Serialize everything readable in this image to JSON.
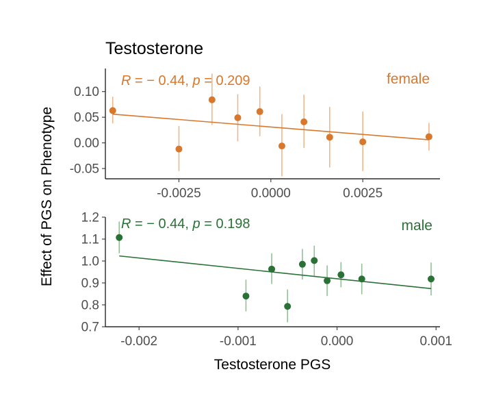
{
  "title": "Testosterone",
  "ylabel": "Effect of PGS on Phenotype",
  "xlabel": "Testosterone PGS",
  "chart_data": [
    {
      "type": "scatter",
      "panel": "female",
      "label": "female",
      "color": "#d9772b",
      "errorbar_color": "#f0b78c",
      "xlim": [
        -0.0045,
        0.0046
      ],
      "ylim": [
        -0.07,
        0.145
      ],
      "xticks": [
        -0.0025,
        0.0,
        0.0025
      ],
      "xtick_labels": [
        "-0.0025",
        "0.0000",
        "0.0025"
      ],
      "yticks": [
        -0.05,
        0.0,
        0.05,
        0.1
      ],
      "ytick_labels": [
        "-0.05",
        "0.00",
        "0.05",
        "0.10"
      ],
      "annotation": {
        "r_label": "R",
        "r_value": "= − 0.44,",
        "p_label": "p",
        "p_value": "= 0.209"
      },
      "regression": {
        "x": [
          -0.0043,
          0.0043
        ],
        "y": [
          0.056,
          0.006
        ]
      },
      "points": [
        {
          "x": -0.0043,
          "y": 0.063,
          "lo": 0.038,
          "hi": 0.09
        },
        {
          "x": -0.0025,
          "y": -0.012,
          "lo": -0.055,
          "hi": 0.033
        },
        {
          "x": -0.0016,
          "y": 0.084,
          "lo": 0.035,
          "hi": 0.135
        },
        {
          "x": -0.0009,
          "y": 0.049,
          "lo": 0.003,
          "hi": 0.095
        },
        {
          "x": -0.0003,
          "y": 0.061,
          "lo": 0.013,
          "hi": 0.11
        },
        {
          "x": 0.0003,
          "y": -0.006,
          "lo": -0.065,
          "hi": 0.056
        },
        {
          "x": 0.0009,
          "y": 0.041,
          "lo": -0.01,
          "hi": 0.094
        },
        {
          "x": 0.0016,
          "y": 0.011,
          "lo": -0.048,
          "hi": 0.07
        },
        {
          "x": 0.0025,
          "y": 0.002,
          "lo": -0.055,
          "hi": 0.061
        },
        {
          "x": 0.0043,
          "y": 0.012,
          "lo": -0.015,
          "hi": 0.039
        }
      ]
    },
    {
      "type": "scatter",
      "panel": "male",
      "label": "male",
      "color": "#2a7136",
      "errorbar_color": "#93bf97",
      "xlim": [
        -0.00234,
        0.00104
      ],
      "ylim": [
        0.7,
        1.2
      ],
      "xticks": [
        -0.002,
        -0.001,
        0.0,
        0.001
      ],
      "xtick_labels": [
        "-0.002",
        "-0.001",
        "0.000",
        "0.001"
      ],
      "yticks": [
        0.7,
        0.8,
        0.9,
        1.0,
        1.1,
        1.2
      ],
      "ytick_labels": [
        "0.7",
        "0.8",
        "0.9",
        "1.0",
        "1.1",
        "1.2"
      ],
      "annotation": {
        "r_label": "R",
        "r_value": "= − 0.44,",
        "p_label": "p",
        "p_value": "= 0.198"
      },
      "regression": {
        "x": [
          -0.0022,
          0.00095
        ],
        "y": [
          1.023,
          0.874
        ]
      },
      "points": [
        {
          "x": -0.0022,
          "y": 1.107,
          "lo": 1.035,
          "hi": 1.18
        },
        {
          "x": -0.00092,
          "y": 0.84,
          "lo": 0.77,
          "hi": 0.915
        },
        {
          "x": -0.00066,
          "y": 0.963,
          "lo": 0.895,
          "hi": 1.035
        },
        {
          "x": -0.0005,
          "y": 0.793,
          "lo": 0.72,
          "hi": 0.87
        },
        {
          "x": -0.00035,
          "y": 0.985,
          "lo": 0.915,
          "hi": 1.055
        },
        {
          "x": -0.00023,
          "y": 1.002,
          "lo": 0.93,
          "hi": 1.07
        },
        {
          "x": -0.0001,
          "y": 0.91,
          "lo": 0.84,
          "hi": 0.98
        },
        {
          "x": 4e-05,
          "y": 0.937,
          "lo": 0.88,
          "hi": 0.995
        },
        {
          "x": 0.00025,
          "y": 0.918,
          "lo": 0.848,
          "hi": 0.988
        },
        {
          "x": 0.00095,
          "y": 0.918,
          "lo": 0.843,
          "hi": 0.993
        }
      ]
    }
  ]
}
